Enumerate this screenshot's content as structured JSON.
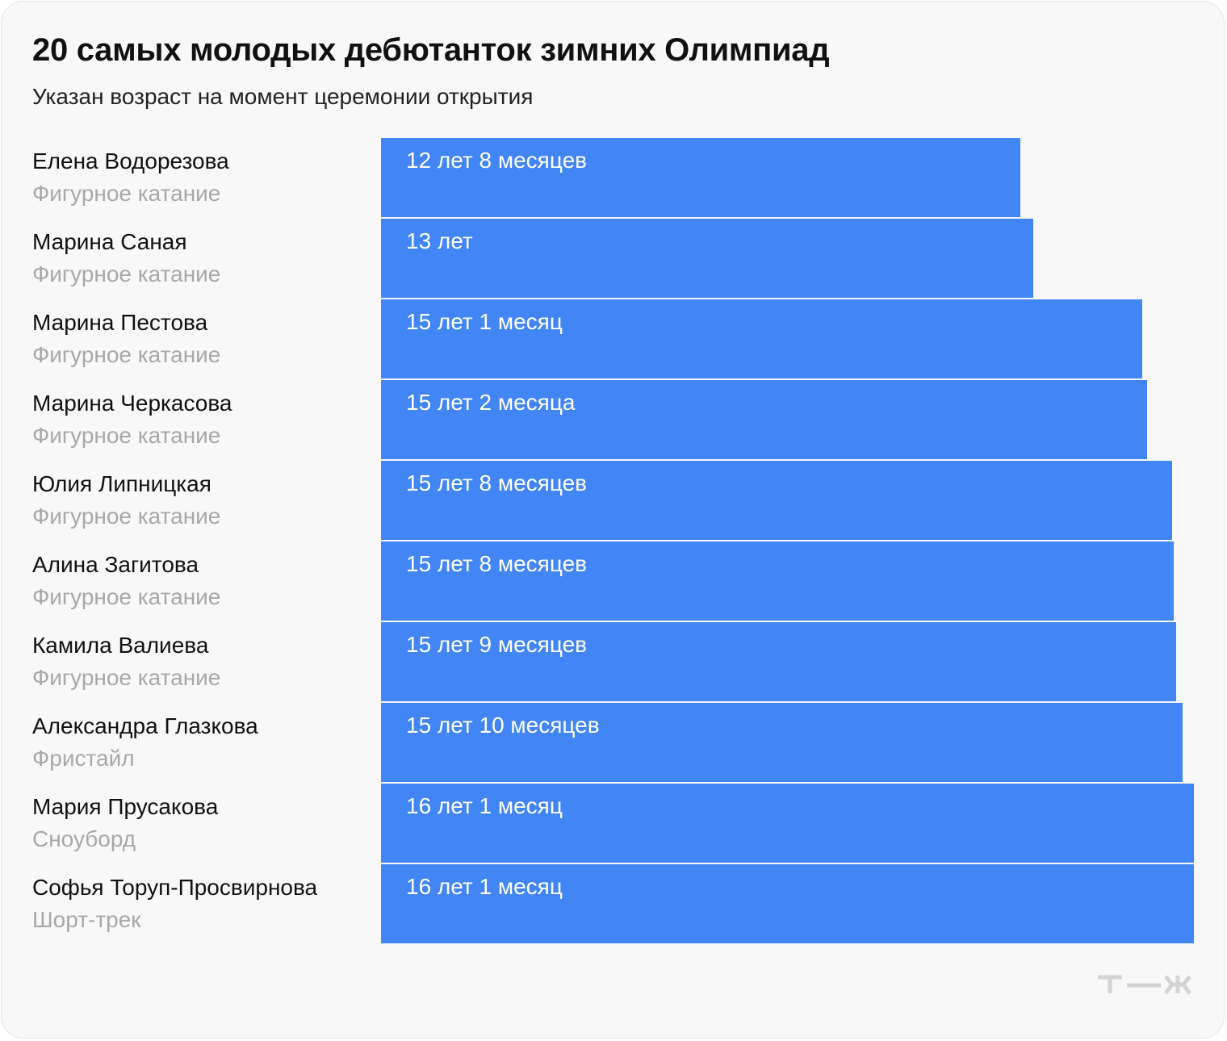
{
  "title": "20 самых молодых дебютанток зимних Олимпиад",
  "subtitle": "Указан возраст на момент церемонии открытия",
  "colors": {
    "bar": "#4285f4",
    "background": "#f8f8f8",
    "name_text": "#111111",
    "sport_text": "#a8a8a8",
    "logo": "#d4d4d4"
  },
  "logo_name": "tzh-logo",
  "chart_data": {
    "type": "bar",
    "orientation": "horizontal",
    "unit": "years",
    "categories": [
      "Елена Водорезова",
      "Марина Саная",
      "Марина Пестова",
      "Марина Черкасова",
      "Юлия Липницкая",
      "Алина Загитова",
      "Камила Валиева",
      "Александра Глазкова",
      "Мария Прусакова",
      "Софья Торуп-Просвирнова"
    ],
    "sports": [
      "Фигурное катание",
      "Фигурное катание",
      "Фигурное катание",
      "Фигурное катание",
      "Фигурное катание",
      "Фигурное катание",
      "Фигурное катание",
      "Фристайл",
      "Сноуборд",
      "Шорт-трек"
    ],
    "labels": [
      "12 лет 8 месяцев",
      "13 лет",
      "15 лет 1 месяц",
      "15 лет 2 месяца",
      "15 лет 8 месяцев",
      "15 лет 8 месяцев",
      "15 лет 9 месяцев",
      "15 лет 10 месяцев",
      "16 лет 1 месяц",
      "16 лет 1 месяц"
    ],
    "values": [
      12.67,
      12.92,
      15.08,
      15.17,
      15.67,
      15.7,
      15.75,
      15.87,
      16.1,
      16.1
    ],
    "xlim": [
      0,
      16.1
    ],
    "grid": false,
    "legend": "none"
  }
}
